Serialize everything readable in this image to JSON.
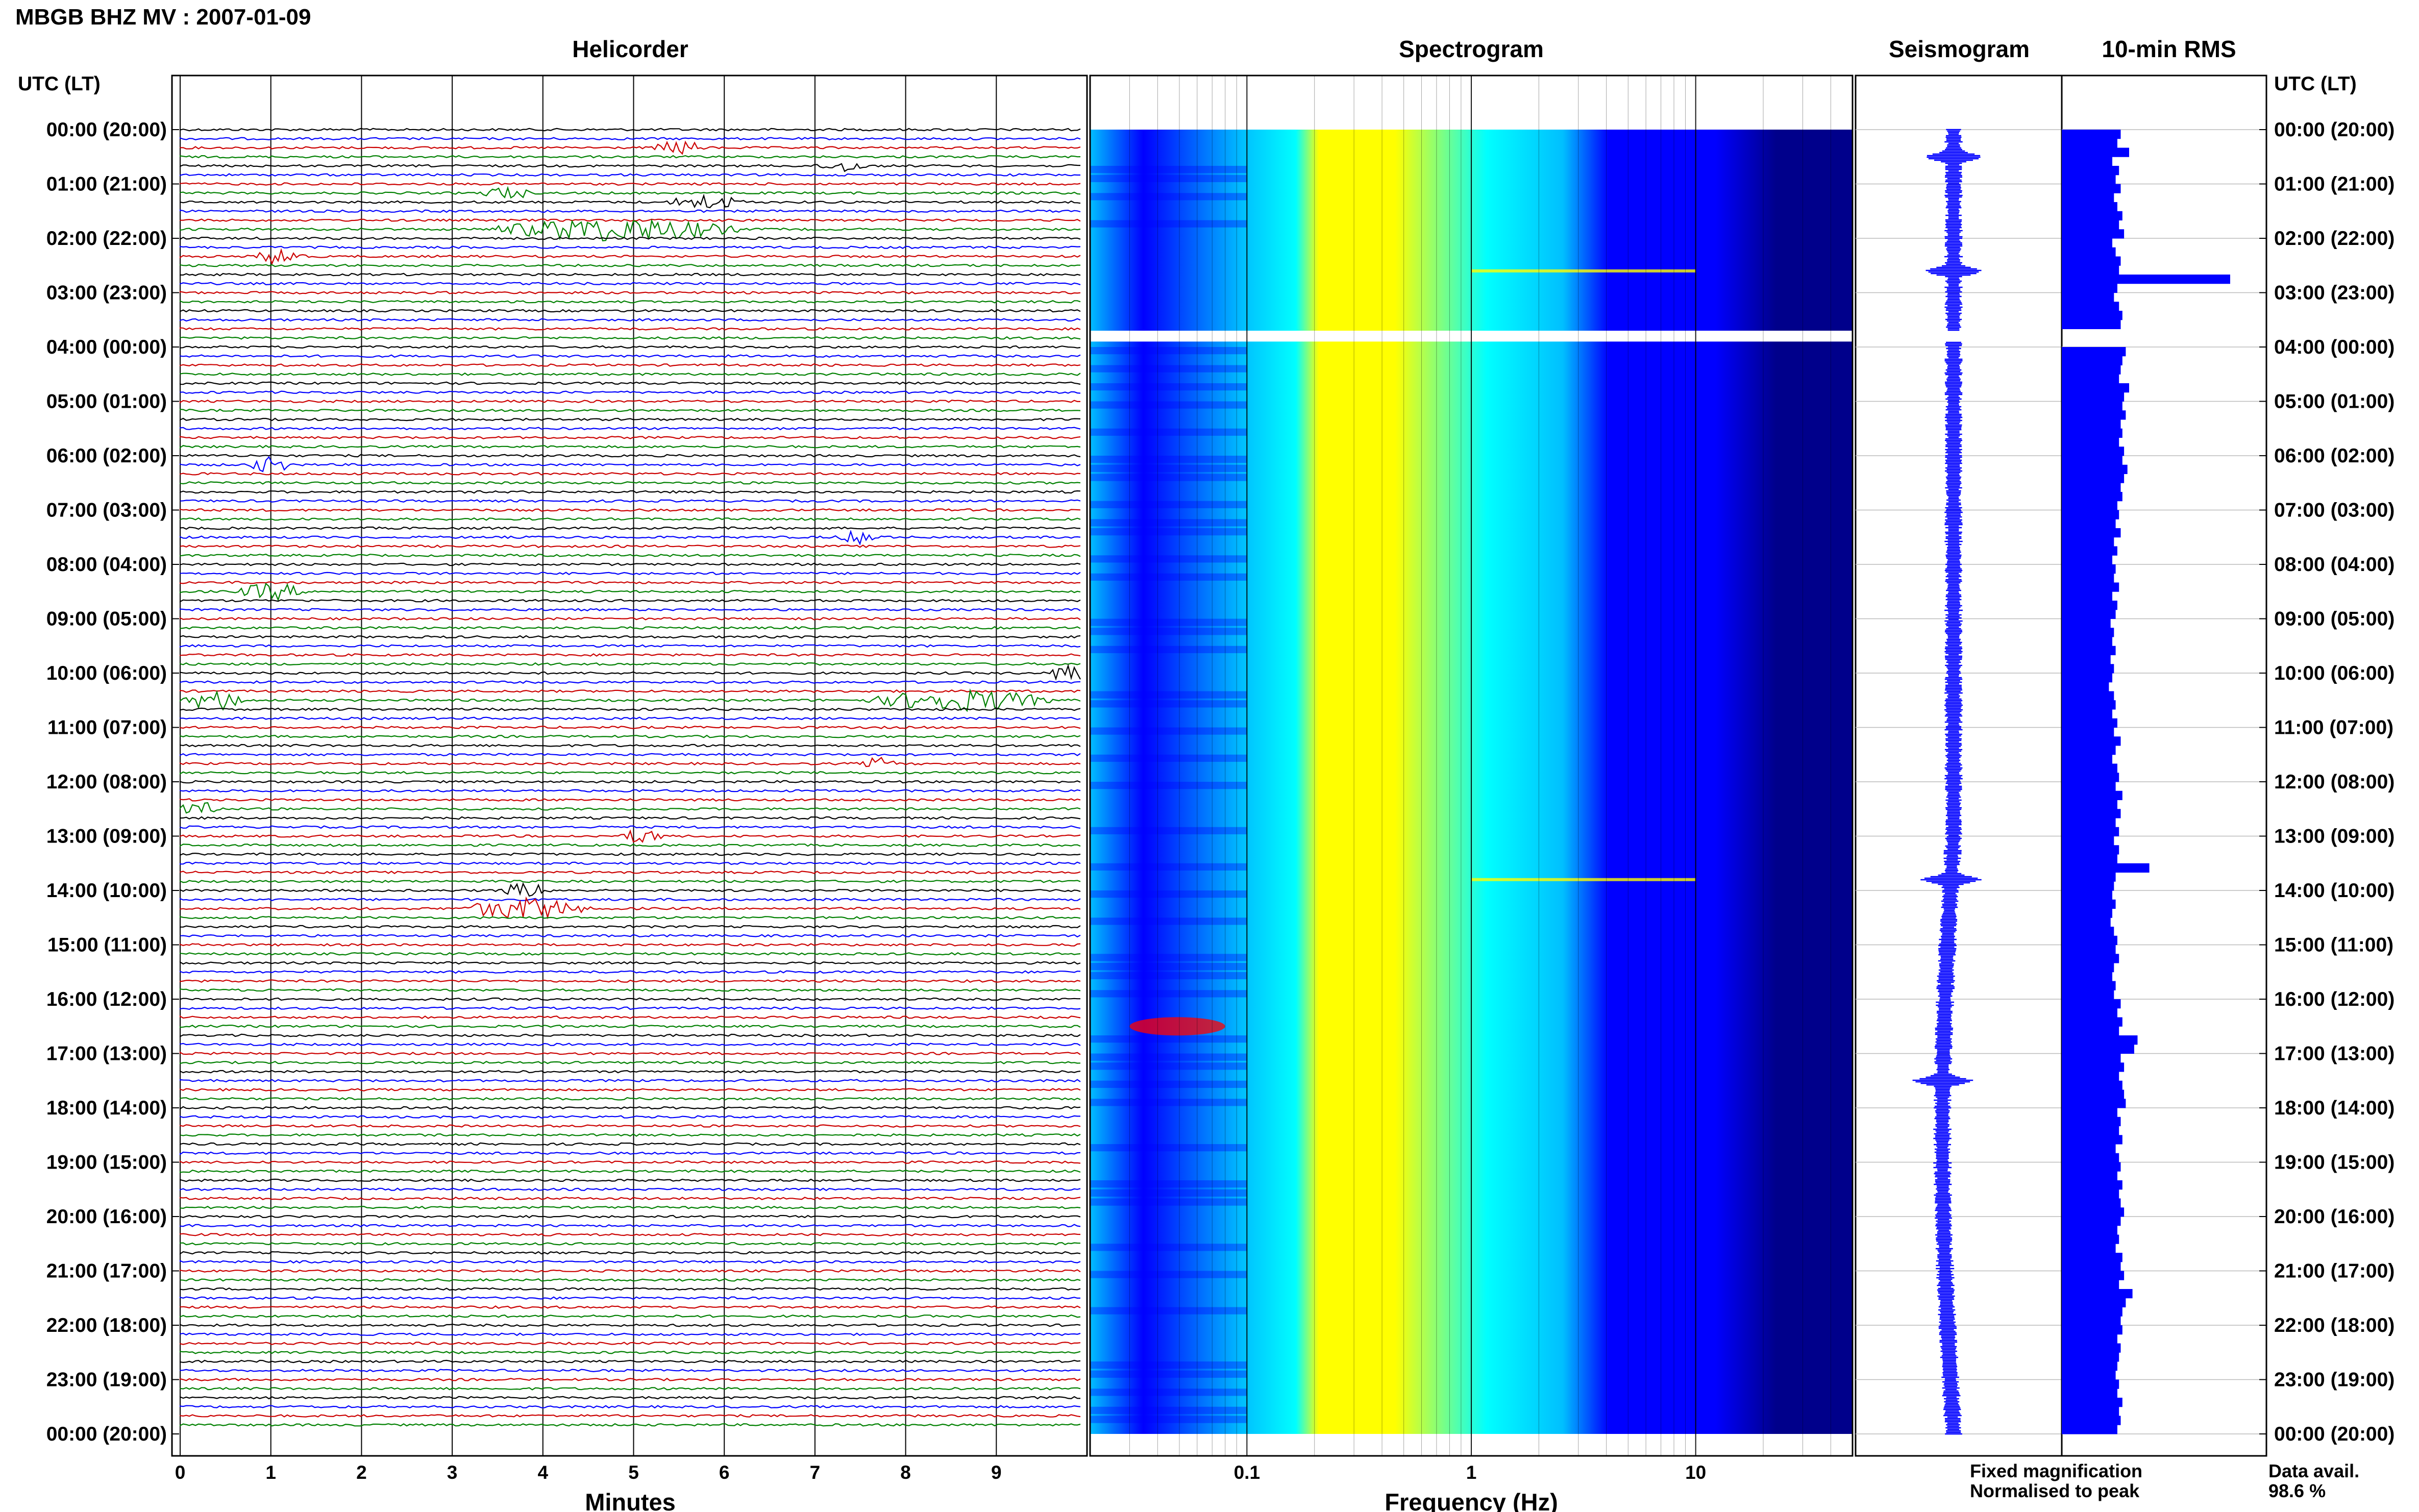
{
  "title": "MBGB BHZ MV : 2007-01-09",
  "panels": {
    "helicorder": "Helicorder",
    "spectrogram": "Spectrogram",
    "seismogram": "Seismogram",
    "rms": "10-min RMS"
  },
  "axis_title_left": "UTC (LT)",
  "axis_title_right": "UTC (LT)",
  "xlabel_helicorder": "Minutes",
  "xlabel_spectrogram": "Frequency (Hz)",
  "legend": {
    "fixed": "Fixed magnification",
    "normalised": "Normalised to peak",
    "fixed_color": "#0000ff",
    "normalised_color": "#ff0000"
  },
  "availability": {
    "label": "Data avail.",
    "value": "98.6 %"
  },
  "colors": {
    "trace_cycle": [
      "#000000",
      "#0000ff",
      "#cc0000",
      "#008000"
    ],
    "rms_bar": "#0000ff",
    "spectrogram_scale": [
      "#00008b",
      "#0000ff",
      "#00bfff",
      "#00ffff",
      "#ffff00",
      "#ff0000"
    ]
  },
  "chart_data": [
    {
      "type": "line",
      "name": "helicorder",
      "xlabel": "Minutes",
      "xticks": [
        0,
        1,
        2,
        3,
        4,
        5,
        6,
        7,
        8,
        9
      ],
      "xlim": [
        0,
        10
      ],
      "rows_per_hour": 6,
      "hours": 24,
      "ytick_labels": [
        "00:00 (20:00)",
        "01:00 (21:00)",
        "02:00 (22:00)",
        "03:00 (23:00)",
        "04:00 (00:00)",
        "05:00 (01:00)",
        "06:00 (02:00)",
        "07:00 (03:00)",
        "08:00 (04:00)",
        "09:00 (05:00)",
        "10:00 (06:00)",
        "11:00 (07:00)",
        "12:00 (08:00)",
        "13:00 (09:00)",
        "14:00 (10:00)",
        "15:00 (11:00)",
        "16:00 (12:00)",
        "17:00 (13:00)",
        "18:00 (14:00)",
        "19:00 (15:00)",
        "20:00 (16:00)",
        "21:00 (17:00)",
        "22:00 (18:00)",
        "23:00 (19:00)",
        "00:00 (20:00)"
      ],
      "events": [
        {
          "row": 2,
          "minute": 5.5,
          "duration": 0.6,
          "amplitude": 0.6
        },
        {
          "row": 4,
          "minute": 7.3,
          "duration": 0.6,
          "amplitude": 0.5
        },
        {
          "row": 7,
          "minute": 3.6,
          "duration": 0.6,
          "amplitude": 0.5
        },
        {
          "row": 8,
          "minute": 5.8,
          "duration": 0.9,
          "amplitude": 0.6
        },
        {
          "row": 11,
          "minute": 4.8,
          "duration": 3.0,
          "amplitude": 1.0
        },
        {
          "row": 14,
          "minute": 1.1,
          "duration": 0.6,
          "amplitude": 0.7
        },
        {
          "row": 37,
          "minute": 1.0,
          "duration": 0.6,
          "amplitude": 0.6
        },
        {
          "row": 45,
          "minute": 7.5,
          "duration": 0.6,
          "amplitude": 0.5
        },
        {
          "row": 51,
          "minute": 1.0,
          "duration": 0.8,
          "amplitude": 0.7
        },
        {
          "row": 60,
          "minute": 9.8,
          "duration": 0.5,
          "amplitude": 0.8
        },
        {
          "row": 63,
          "minute": 0.4,
          "duration": 0.8,
          "amplitude": 0.8
        },
        {
          "row": 63,
          "minute": 8.6,
          "duration": 2.2,
          "amplitude": 0.9
        },
        {
          "row": 70,
          "minute": 7.7,
          "duration": 0.4,
          "amplitude": 0.5
        },
        {
          "row": 75,
          "minute": 0.2,
          "duration": 0.5,
          "amplitude": 0.9
        },
        {
          "row": 78,
          "minute": 5.1,
          "duration": 0.5,
          "amplitude": 0.6
        },
        {
          "row": 84,
          "minute": 3.8,
          "duration": 0.6,
          "amplitude": 0.6
        },
        {
          "row": 86,
          "minute": 3.8,
          "duration": 1.5,
          "amplitude": 0.9
        }
      ]
    },
    {
      "type": "heatmap",
      "name": "spectrogram",
      "xlabel": "Frequency (Hz)",
      "xscale": "log",
      "xlim": [
        0.02,
        50
      ],
      "xticks": [
        0.1,
        1,
        10
      ],
      "xtick_labels": [
        "0.1",
        "1",
        "10"
      ],
      "gap_hours": [
        3.7,
        3.9
      ],
      "features": [
        {
          "hour": 2.6,
          "band_hz": [
            1,
            10
          ],
          "note": "line"
        },
        {
          "hour": 13.8,
          "band_hz": [
            1,
            10
          ],
          "note": "line"
        },
        {
          "hour": 16.5,
          "band_hz": [
            0.03,
            0.08
          ],
          "note": "hot spot"
        }
      ]
    },
    {
      "type": "line",
      "name": "seismogram",
      "spikes_hours": [
        0.5,
        2.6,
        13.8,
        17.5
      ]
    },
    {
      "type": "bar",
      "name": "10-min RMS",
      "orientation": "horizontal",
      "row_hours": 0.1667,
      "values_relative": [
        0.35,
        0.33,
        0.4,
        0.3,
        0.34,
        0.32,
        0.35,
        0.31,
        0.33,
        0.36,
        0.34,
        0.37,
        0.3,
        0.32,
        0.35,
        0.34,
        1.0,
        0.33,
        0.31,
        0.34,
        0.36,
        0.35,
        0.0,
        0.0,
        0.38,
        0.36,
        0.35,
        0.34,
        0.4,
        0.37,
        0.36,
        0.38,
        0.35,
        0.36,
        0.34,
        0.37,
        0.36,
        0.39,
        0.37,
        0.35,
        0.36,
        0.33,
        0.34,
        0.32,
        0.35,
        0.31,
        0.33,
        0.3,
        0.32,
        0.31,
        0.34,
        0.3,
        0.33,
        0.32,
        0.29,
        0.31,
        0.3,
        0.32,
        0.29,
        0.31,
        0.3,
        0.28,
        0.31,
        0.32,
        0.3,
        0.33,
        0.31,
        0.35,
        0.32,
        0.3,
        0.33,
        0.34,
        0.32,
        0.36,
        0.33,
        0.35,
        0.32,
        0.34,
        0.31,
        0.34,
        0.33,
        0.52,
        0.32,
        0.31,
        0.3,
        0.32,
        0.3,
        0.29,
        0.31,
        0.33,
        0.32,
        0.34,
        0.31,
        0.3,
        0.32,
        0.31,
        0.35,
        0.33,
        0.36,
        0.34,
        0.45,
        0.43,
        0.35,
        0.37,
        0.34,
        0.36,
        0.37,
        0.38,
        0.33,
        0.35,
        0.34,
        0.36,
        0.32,
        0.34,
        0.35,
        0.33,
        0.36,
        0.34,
        0.35,
        0.37,
        0.35,
        0.33,
        0.34,
        0.32,
        0.36,
        0.35,
        0.37,
        0.34,
        0.42,
        0.38,
        0.36,
        0.35,
        0.36,
        0.33,
        0.35,
        0.34,
        0.33,
        0.32,
        0.34,
        0.33,
        0.36,
        0.34,
        0.35,
        0.33
      ]
    }
  ]
}
